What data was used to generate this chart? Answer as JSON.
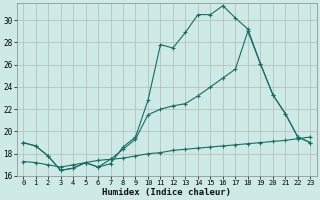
{
  "xlabel": "Humidex (Indice chaleur)",
  "bg_color": "#ceeae6",
  "grid_color": "#b8b8b8",
  "line_color": "#1a6b60",
  "xlim": [
    -0.5,
    23.5
  ],
  "ylim": [
    16,
    31.5
  ],
  "yticks": [
    16,
    18,
    20,
    22,
    24,
    26,
    28,
    30
  ],
  "xticks": [
    0,
    1,
    2,
    3,
    4,
    5,
    6,
    7,
    8,
    9,
    10,
    11,
    12,
    13,
    14,
    15,
    16,
    17,
    18,
    19,
    20,
    21,
    22,
    23
  ],
  "line1_x": [
    0,
    1,
    2,
    3,
    4,
    5,
    6,
    7,
    8,
    9,
    10,
    11,
    12,
    13,
    14,
    15,
    16,
    17,
    18,
    19,
    20,
    21,
    22,
    23
  ],
  "line1_y": [
    19.0,
    18.7,
    17.8,
    16.5,
    16.7,
    17.2,
    16.8,
    17.1,
    18.6,
    19.5,
    22.8,
    27.8,
    27.5,
    28.9,
    30.5,
    30.5,
    31.3,
    30.2,
    29.2,
    26.1,
    23.3,
    21.6,
    19.5,
    19.0
  ],
  "line2_x": [
    0,
    1,
    2,
    3,
    4,
    5,
    6,
    7,
    8,
    9,
    10,
    11,
    12,
    13,
    14,
    15,
    16,
    17,
    18,
    19,
    20,
    21,
    22,
    23
  ],
  "line2_y": [
    19.0,
    18.7,
    17.8,
    16.5,
    16.7,
    17.2,
    16.8,
    17.5,
    18.4,
    19.3,
    21.5,
    22.0,
    22.3,
    22.5,
    23.2,
    24.0,
    24.8,
    25.6,
    29.0,
    26.1,
    23.3,
    21.6,
    19.5,
    19.0
  ],
  "line3_x": [
    0,
    1,
    2,
    3,
    4,
    5,
    6,
    7,
    8,
    9,
    10,
    11,
    12,
    13,
    14,
    15,
    16,
    17,
    18,
    19,
    20,
    21,
    22,
    23
  ],
  "line3_y": [
    17.3,
    17.2,
    17.0,
    16.8,
    17.0,
    17.2,
    17.4,
    17.5,
    17.6,
    17.8,
    18.0,
    18.1,
    18.3,
    18.4,
    18.5,
    18.6,
    18.7,
    18.8,
    18.9,
    19.0,
    19.1,
    19.2,
    19.35,
    19.5
  ]
}
